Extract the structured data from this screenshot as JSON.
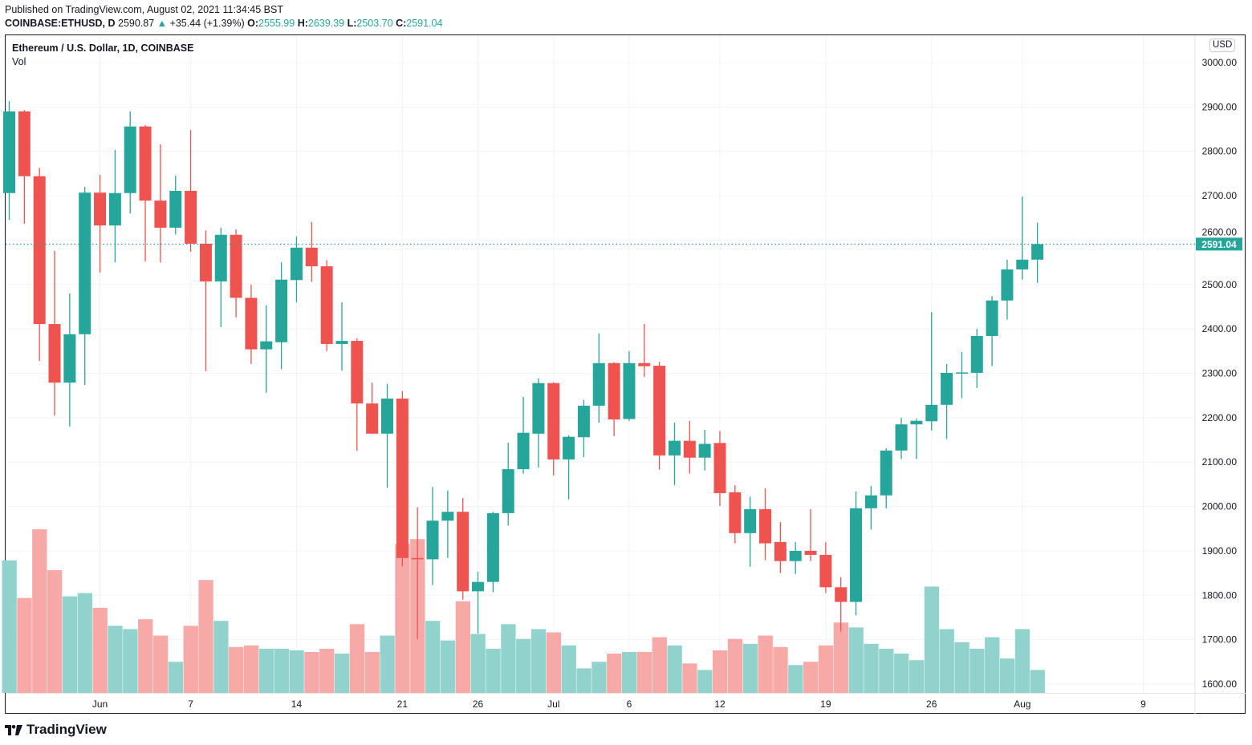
{
  "header": {
    "published": "Published on TradingView.com, August 02, 2021 11:34:45 BST",
    "symbol": "COINBASE:ETHUSD, D",
    "last": "2590.87",
    "change": "+35.44 (+1.39%)",
    "o_label": "O:",
    "o": "2555.99",
    "h_label": "H:",
    "h": "2639.39",
    "l_label": "L:",
    "l": "2503.70",
    "c_label": "C:",
    "c": "2591.04",
    "up_icon": "triangle-up-icon"
  },
  "legend": {
    "title": "Ethereum / U.S. Dollar, 1D, COINBASE",
    "volume": "Vol"
  },
  "currency": "USD",
  "last_price_label": "2591.04",
  "logo": "TradingView",
  "colors": {
    "up": "#26a69a",
    "down": "#ef5350",
    "up_vol": "#92d2cc",
    "down_vol": "#f7a9a7",
    "grid": "#f0f3fa"
  },
  "chart_data": {
    "type": "candlestick",
    "interval": "1D",
    "ylim": [
      1600,
      3000
    ],
    "grid": true,
    "y_ticks": [
      "3000.00",
      "2900.00",
      "2800.00",
      "2700.00",
      "2600.00",
      "2500.00",
      "2400.00",
      "2300.00",
      "2200.00",
      "2100.00",
      "2000.00",
      "1900.00",
      "1800.00",
      "1700.00",
      "1600.00"
    ],
    "x_ticks": [
      {
        "label": "Jun",
        "date": "2021-06-01"
      },
      {
        "label": "7",
        "date": "2021-06-07"
      },
      {
        "label": "14",
        "date": "2021-06-14"
      },
      {
        "label": "21",
        "date": "2021-06-21"
      },
      {
        "label": "26",
        "date": "2021-06-26"
      },
      {
        "label": "Jul",
        "date": "2021-07-01"
      },
      {
        "label": "6",
        "date": "2021-07-06"
      },
      {
        "label": "12",
        "date": "2021-07-12"
      },
      {
        "label": "19",
        "date": "2021-07-19"
      },
      {
        "label": "26",
        "date": "2021-07-26"
      },
      {
        "label": "Aug",
        "date": "2021-08-01"
      },
      {
        "label": "9",
        "date": "2021-08-09"
      }
    ],
    "dates": [
      "2021-05-26",
      "2021-05-27",
      "2021-05-28",
      "2021-05-29",
      "2021-05-30",
      "2021-05-31",
      "2021-06-01",
      "2021-06-02",
      "2021-06-03",
      "2021-06-04",
      "2021-06-05",
      "2021-06-06",
      "2021-06-07",
      "2021-06-08",
      "2021-06-09",
      "2021-06-10",
      "2021-06-11",
      "2021-06-12",
      "2021-06-13",
      "2021-06-14",
      "2021-06-15",
      "2021-06-16",
      "2021-06-17",
      "2021-06-18",
      "2021-06-19",
      "2021-06-20",
      "2021-06-21",
      "2021-06-22",
      "2021-06-23",
      "2021-06-24",
      "2021-06-25",
      "2021-06-26",
      "2021-06-27",
      "2021-06-28",
      "2021-06-29",
      "2021-06-30",
      "2021-07-01",
      "2021-07-02",
      "2021-07-03",
      "2021-07-04",
      "2021-07-05",
      "2021-07-06",
      "2021-07-07",
      "2021-07-08",
      "2021-07-09",
      "2021-07-10",
      "2021-07-11",
      "2021-07-12",
      "2021-07-13",
      "2021-07-14",
      "2021-07-15",
      "2021-07-16",
      "2021-07-17",
      "2021-07-18",
      "2021-07-19",
      "2021-07-20",
      "2021-07-21",
      "2021-07-22",
      "2021-07-23",
      "2021-07-24",
      "2021-07-25",
      "2021-07-26",
      "2021-07-27",
      "2021-07-28",
      "2021-07-29",
      "2021-07-30",
      "2021-07-31",
      "2021-08-01",
      "2021-08-02"
    ],
    "ohlc": [
      [
        2706,
        2913,
        2646,
        2890
      ],
      [
        2890,
        2893,
        2637,
        2744
      ],
      [
        2744,
        2763,
        2328,
        2411
      ],
      [
        2411,
        2576,
        2205,
        2279
      ],
      [
        2279,
        2480,
        2180,
        2388
      ],
      [
        2388,
        2720,
        2274,
        2707
      ],
      [
        2707,
        2747,
        2527,
        2633
      ],
      [
        2633,
        2803,
        2550,
        2706
      ],
      [
        2706,
        2890,
        2660,
        2856
      ],
      [
        2856,
        2859,
        2552,
        2689
      ],
      [
        2689,
        2816,
        2550,
        2628
      ],
      [
        2628,
        2745,
        2613,
        2711
      ],
      [
        2711,
        2848,
        2574,
        2592
      ],
      [
        2592,
        2622,
        2305,
        2507
      ],
      [
        2507,
        2628,
        2404,
        2612
      ],
      [
        2612,
        2624,
        2426,
        2470
      ],
      [
        2470,
        2500,
        2321,
        2354
      ],
      [
        2354,
        2453,
        2256,
        2372
      ],
      [
        2370,
        2550,
        2309,
        2511
      ],
      [
        2510,
        2608,
        2460,
        2583
      ],
      [
        2583,
        2641,
        2506,
        2541
      ],
      [
        2541,
        2555,
        2350,
        2366
      ],
      [
        2366,
        2460,
        2306,
        2373
      ],
      [
        2373,
        2379,
        2125,
        2232
      ],
      [
        2232,
        2279,
        2163,
        2164
      ],
      [
        2164,
        2276,
        2042,
        2243
      ],
      [
        2243,
        2260,
        1865,
        1884
      ],
      [
        1884,
        1998,
        1701,
        1881
      ],
      [
        1881,
        2044,
        1823,
        1968
      ],
      [
        1968,
        2036,
        1884,
        1988
      ],
      [
        1988,
        2019,
        1790,
        1809
      ],
      [
        1809,
        1853,
        1714,
        1830
      ],
      [
        1830,
        1988,
        1807,
        1985
      ],
      [
        1985,
        2144,
        1957,
        2084
      ],
      [
        2084,
        2247,
        2074,
        2166
      ],
      [
        2164,
        2289,
        2088,
        2278
      ],
      [
        2278,
        2280,
        2070,
        2106
      ],
      [
        2106,
        2160,
        2016,
        2157
      ],
      [
        2156,
        2240,
        2111,
        2227
      ],
      [
        2227,
        2390,
        2189,
        2323
      ],
      [
        2323,
        2325,
        2158,
        2196
      ],
      [
        2197,
        2350,
        2193,
        2323
      ],
      [
        2323,
        2411,
        2292,
        2316
      ],
      [
        2317,
        2326,
        2083,
        2115
      ],
      [
        2115,
        2189,
        2048,
        2148
      ],
      [
        2148,
        2193,
        2074,
        2110
      ],
      [
        2110,
        2173,
        2081,
        2141
      ],
      [
        2143,
        2170,
        2001,
        2030
      ],
      [
        2032,
        2048,
        1917,
        1940
      ],
      [
        1940,
        2022,
        1864,
        1994
      ],
      [
        1994,
        2041,
        1879,
        1917
      ],
      [
        1920,
        1965,
        1850,
        1877
      ],
      [
        1877,
        1920,
        1848,
        1900
      ],
      [
        1900,
        1994,
        1877,
        1891
      ],
      [
        1891,
        1920,
        1805,
        1818
      ],
      [
        1818,
        1841,
        1718,
        1785
      ],
      [
        1785,
        2034,
        1755,
        1996
      ],
      [
        1996,
        2046,
        1948,
        2025
      ],
      [
        2025,
        2131,
        1996,
        2126
      ],
      [
        2126,
        2200,
        2107,
        2185
      ],
      [
        2185,
        2198,
        2107,
        2193
      ],
      [
        2192,
        2438,
        2171,
        2229
      ],
      [
        2229,
        2321,
        2152,
        2301
      ],
      [
        2300,
        2348,
        2244,
        2302
      ],
      [
        2301,
        2400,
        2267,
        2384
      ],
      [
        2384,
        2474,
        2316,
        2464
      ],
      [
        2464,
        2556,
        2421,
        2534
      ],
      [
        2534,
        2698,
        2511,
        2556
      ],
      [
        2555.99,
        2639.39,
        2503.7,
        2591.04
      ]
    ],
    "volume_pct_of_max": [
      81,
      58,
      100,
      75,
      59,
      61,
      52,
      41,
      39,
      45,
      35,
      19,
      41,
      69,
      44,
      28,
      29,
      27,
      27,
      26,
      25,
      27,
      24,
      42,
      25,
      35,
      91,
      94,
      44,
      32,
      56,
      36,
      27,
      42,
      33,
      39,
      37,
      29,
      15,
      19,
      24,
      25,
      25,
      34,
      29,
      18,
      14,
      26,
      33,
      30,
      35,
      28,
      17,
      19,
      29,
      43,
      40,
      30,
      27,
      24,
      20,
      65,
      39,
      31,
      27,
      34,
      21,
      39,
      14
    ],
    "last_price": 2591.04
  }
}
